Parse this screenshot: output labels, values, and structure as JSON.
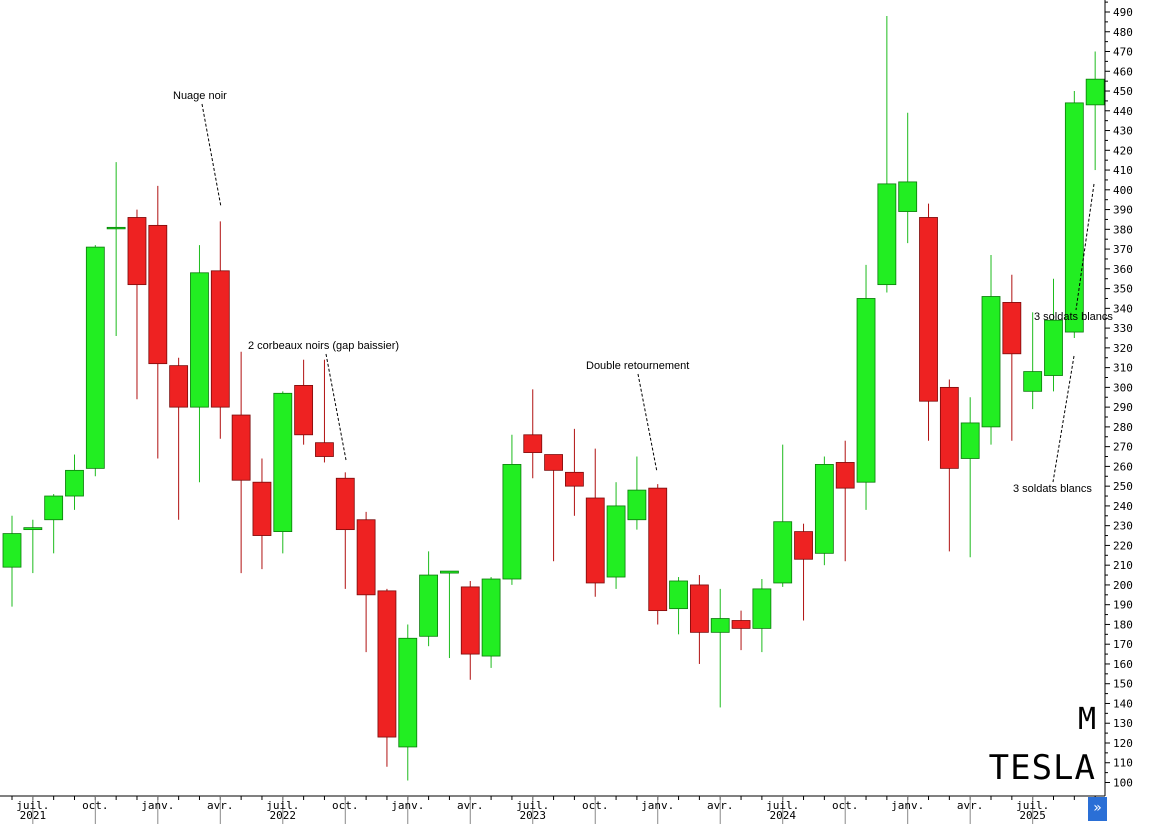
{
  "chart_data": {
    "type": "candlestick",
    "instrument": "TESLA",
    "period": "M",
    "ylim": [
      95,
      492
    ],
    "y_ticks": [
      100,
      110,
      120,
      130,
      140,
      150,
      160,
      170,
      180,
      190,
      200,
      210,
      220,
      230,
      240,
      250,
      260,
      270,
      280,
      290,
      300,
      310,
      320,
      330,
      340,
      350,
      360,
      370,
      380,
      390,
      400,
      410,
      420,
      430,
      440,
      450,
      460,
      470,
      480,
      490
    ],
    "x_labels": [
      {
        "index": 1,
        "month": "juil.",
        "year": "2021"
      },
      {
        "index": 4,
        "month": "oct.",
        "year": ""
      },
      {
        "index": 7,
        "month": "janv.",
        "year": ""
      },
      {
        "index": 10,
        "month": "avr.",
        "year": ""
      },
      {
        "index": 13,
        "month": "juil.",
        "year": "2022"
      },
      {
        "index": 16,
        "month": "oct.",
        "year": ""
      },
      {
        "index": 19,
        "month": "janv.",
        "year": ""
      },
      {
        "index": 22,
        "month": "avr.",
        "year": ""
      },
      {
        "index": 25,
        "month": "juil.",
        "year": "2023"
      },
      {
        "index": 28,
        "month": "oct.",
        "year": ""
      },
      {
        "index": 31,
        "month": "janv.",
        "year": ""
      },
      {
        "index": 34,
        "month": "avr.",
        "year": ""
      },
      {
        "index": 37,
        "month": "juil.",
        "year": "2024"
      },
      {
        "index": 40,
        "month": "oct.",
        "year": ""
      },
      {
        "index": 43,
        "month": "janv.",
        "year": ""
      },
      {
        "index": 46,
        "month": "avr.",
        "year": ""
      },
      {
        "index": 49,
        "month": "juil.",
        "year": "2025"
      }
    ],
    "candles": [
      {
        "o": 209,
        "h": 235,
        "l": 189,
        "c": 226
      },
      {
        "o": 228,
        "h": 233,
        "l": 206,
        "c": 229
      },
      {
        "o": 233,
        "h": 246,
        "l": 216,
        "c": 245
      },
      {
        "o": 245,
        "h": 266,
        "l": 238,
        "c": 258
      },
      {
        "o": 259,
        "h": 372,
        "l": 255,
        "c": 371
      },
      {
        "o": 381,
        "h": 414,
        "l": 326,
        "c": 381
      },
      {
        "o": 386,
        "h": 390,
        "l": 294,
        "c": 352
      },
      {
        "o": 382,
        "h": 402,
        "l": 264,
        "c": 312
      },
      {
        "o": 311,
        "h": 315,
        "l": 233,
        "c": 290
      },
      {
        "o": 290,
        "h": 372,
        "l": 252,
        "c": 358
      },
      {
        "o": 359,
        "h": 384,
        "l": 274,
        "c": 290
      },
      {
        "o": 286,
        "h": 318,
        "l": 206,
        "c": 253
      },
      {
        "o": 252,
        "h": 264,
        "l": 208,
        "c": 225
      },
      {
        "o": 227,
        "h": 298,
        "l": 216,
        "c": 297
      },
      {
        "o": 301,
        "h": 314,
        "l": 271,
        "c": 276
      },
      {
        "o": 272,
        "h": 314,
        "l": 262,
        "c": 265
      },
      {
        "o": 254,
        "h": 257,
        "l": 198,
        "c": 228
      },
      {
        "o": 233,
        "h": 237,
        "l": 166,
        "c": 195
      },
      {
        "o": 197,
        "h": 198,
        "l": 108,
        "c": 123
      },
      {
        "o": 118,
        "h": 180,
        "l": 101,
        "c": 173
      },
      {
        "o": 174,
        "h": 217,
        "l": 169,
        "c": 205
      },
      {
        "o": 206,
        "h": 207,
        "l": 163,
        "c": 207
      },
      {
        "o": 199,
        "h": 202,
        "l": 152,
        "c": 165
      },
      {
        "o": 164,
        "h": 204,
        "l": 158,
        "c": 203
      },
      {
        "o": 203,
        "h": 276,
        "l": 200,
        "c": 261
      },
      {
        "o": 276,
        "h": 299,
        "l": 254,
        "c": 267
      },
      {
        "o": 266,
        "h": 266,
        "l": 212,
        "c": 258
      },
      {
        "o": 257,
        "h": 279,
        "l": 235,
        "c": 250
      },
      {
        "o": 244,
        "h": 269,
        "l": 194,
        "c": 201
      },
      {
        "o": 204,
        "h": 252,
        "l": 198,
        "c": 240
      },
      {
        "o": 233,
        "h": 265,
        "l": 228,
        "c": 248
      },
      {
        "o": 249,
        "h": 251,
        "l": 180,
        "c": 187
      },
      {
        "o": 188,
        "h": 204,
        "l": 175,
        "c": 202
      },
      {
        "o": 200,
        "h": 205,
        "l": 160,
        "c": 176
      },
      {
        "o": 176,
        "h": 198,
        "l": 138,
        "c": 183
      },
      {
        "o": 182,
        "h": 187,
        "l": 167,
        "c": 178
      },
      {
        "o": 178,
        "h": 203,
        "l": 166,
        "c": 198
      },
      {
        "o": 201,
        "h": 271,
        "l": 199,
        "c": 232
      },
      {
        "o": 227,
        "h": 231,
        "l": 182,
        "c": 213
      },
      {
        "o": 216,
        "h": 265,
        "l": 210,
        "c": 261
      },
      {
        "o": 262,
        "h": 273,
        "l": 212,
        "c": 249
      },
      {
        "o": 252,
        "h": 362,
        "l": 238,
        "c": 345
      },
      {
        "o": 352,
        "h": 488,
        "l": 348,
        "c": 403
      },
      {
        "o": 389,
        "h": 439,
        "l": 373,
        "c": 404
      },
      {
        "o": 386,
        "h": 393,
        "l": 273,
        "c": 293
      },
      {
        "o": 300,
        "h": 304,
        "l": 217,
        "c": 259
      },
      {
        "o": 264,
        "h": 295,
        "l": 214,
        "c": 282
      },
      {
        "o": 280,
        "h": 367,
        "l": 271,
        "c": 346
      },
      {
        "o": 343,
        "h": 357,
        "l": 273,
        "c": 317
      },
      {
        "o": 298,
        "h": 338,
        "l": 289,
        "c": 308
      },
      {
        "o": 306,
        "h": 355,
        "l": 298,
        "c": 334
      },
      {
        "o": 328,
        "h": 450,
        "l": 325,
        "c": 444
      },
      {
        "o": 443,
        "h": 470,
        "l": 410,
        "c": 456
      }
    ],
    "annotations": [
      {
        "text": "Nuage noir",
        "tx": 173,
        "ty": 99,
        "lx1": 202,
        "ly1": 104,
        "lx2": 221,
        "ly2": 207
      },
      {
        "text": "2 corbeaux noirs (gap baissier)",
        "tx": 248,
        "ty": 349,
        "lx1": 326,
        "ly1": 354,
        "lx2": 346,
        "ly2": 460
      },
      {
        "text": "Double retournement",
        "tx": 586,
        "ty": 369,
        "lx1": 638,
        "ly1": 374,
        "lx2": 657,
        "ly2": 472
      },
      {
        "text": "3 soldats blancs",
        "tx": 1034,
        "ty": 320,
        "lx1": 1094,
        "ly1": 184,
        "lx2": 1076,
        "ly2": 310
      },
      {
        "text": "3 soldats blancs",
        "tx": 1013,
        "ty": 492,
        "lx1": 1074,
        "ly1": 356,
        "lx2": 1053,
        "ly2": 482
      }
    ]
  },
  "watermark": {
    "period": "M",
    "name": "TESLA"
  },
  "nav": {
    "label": "»"
  },
  "colors": {
    "up": "#22ee22",
    "down": "#ee2222",
    "axis": "#000000"
  }
}
